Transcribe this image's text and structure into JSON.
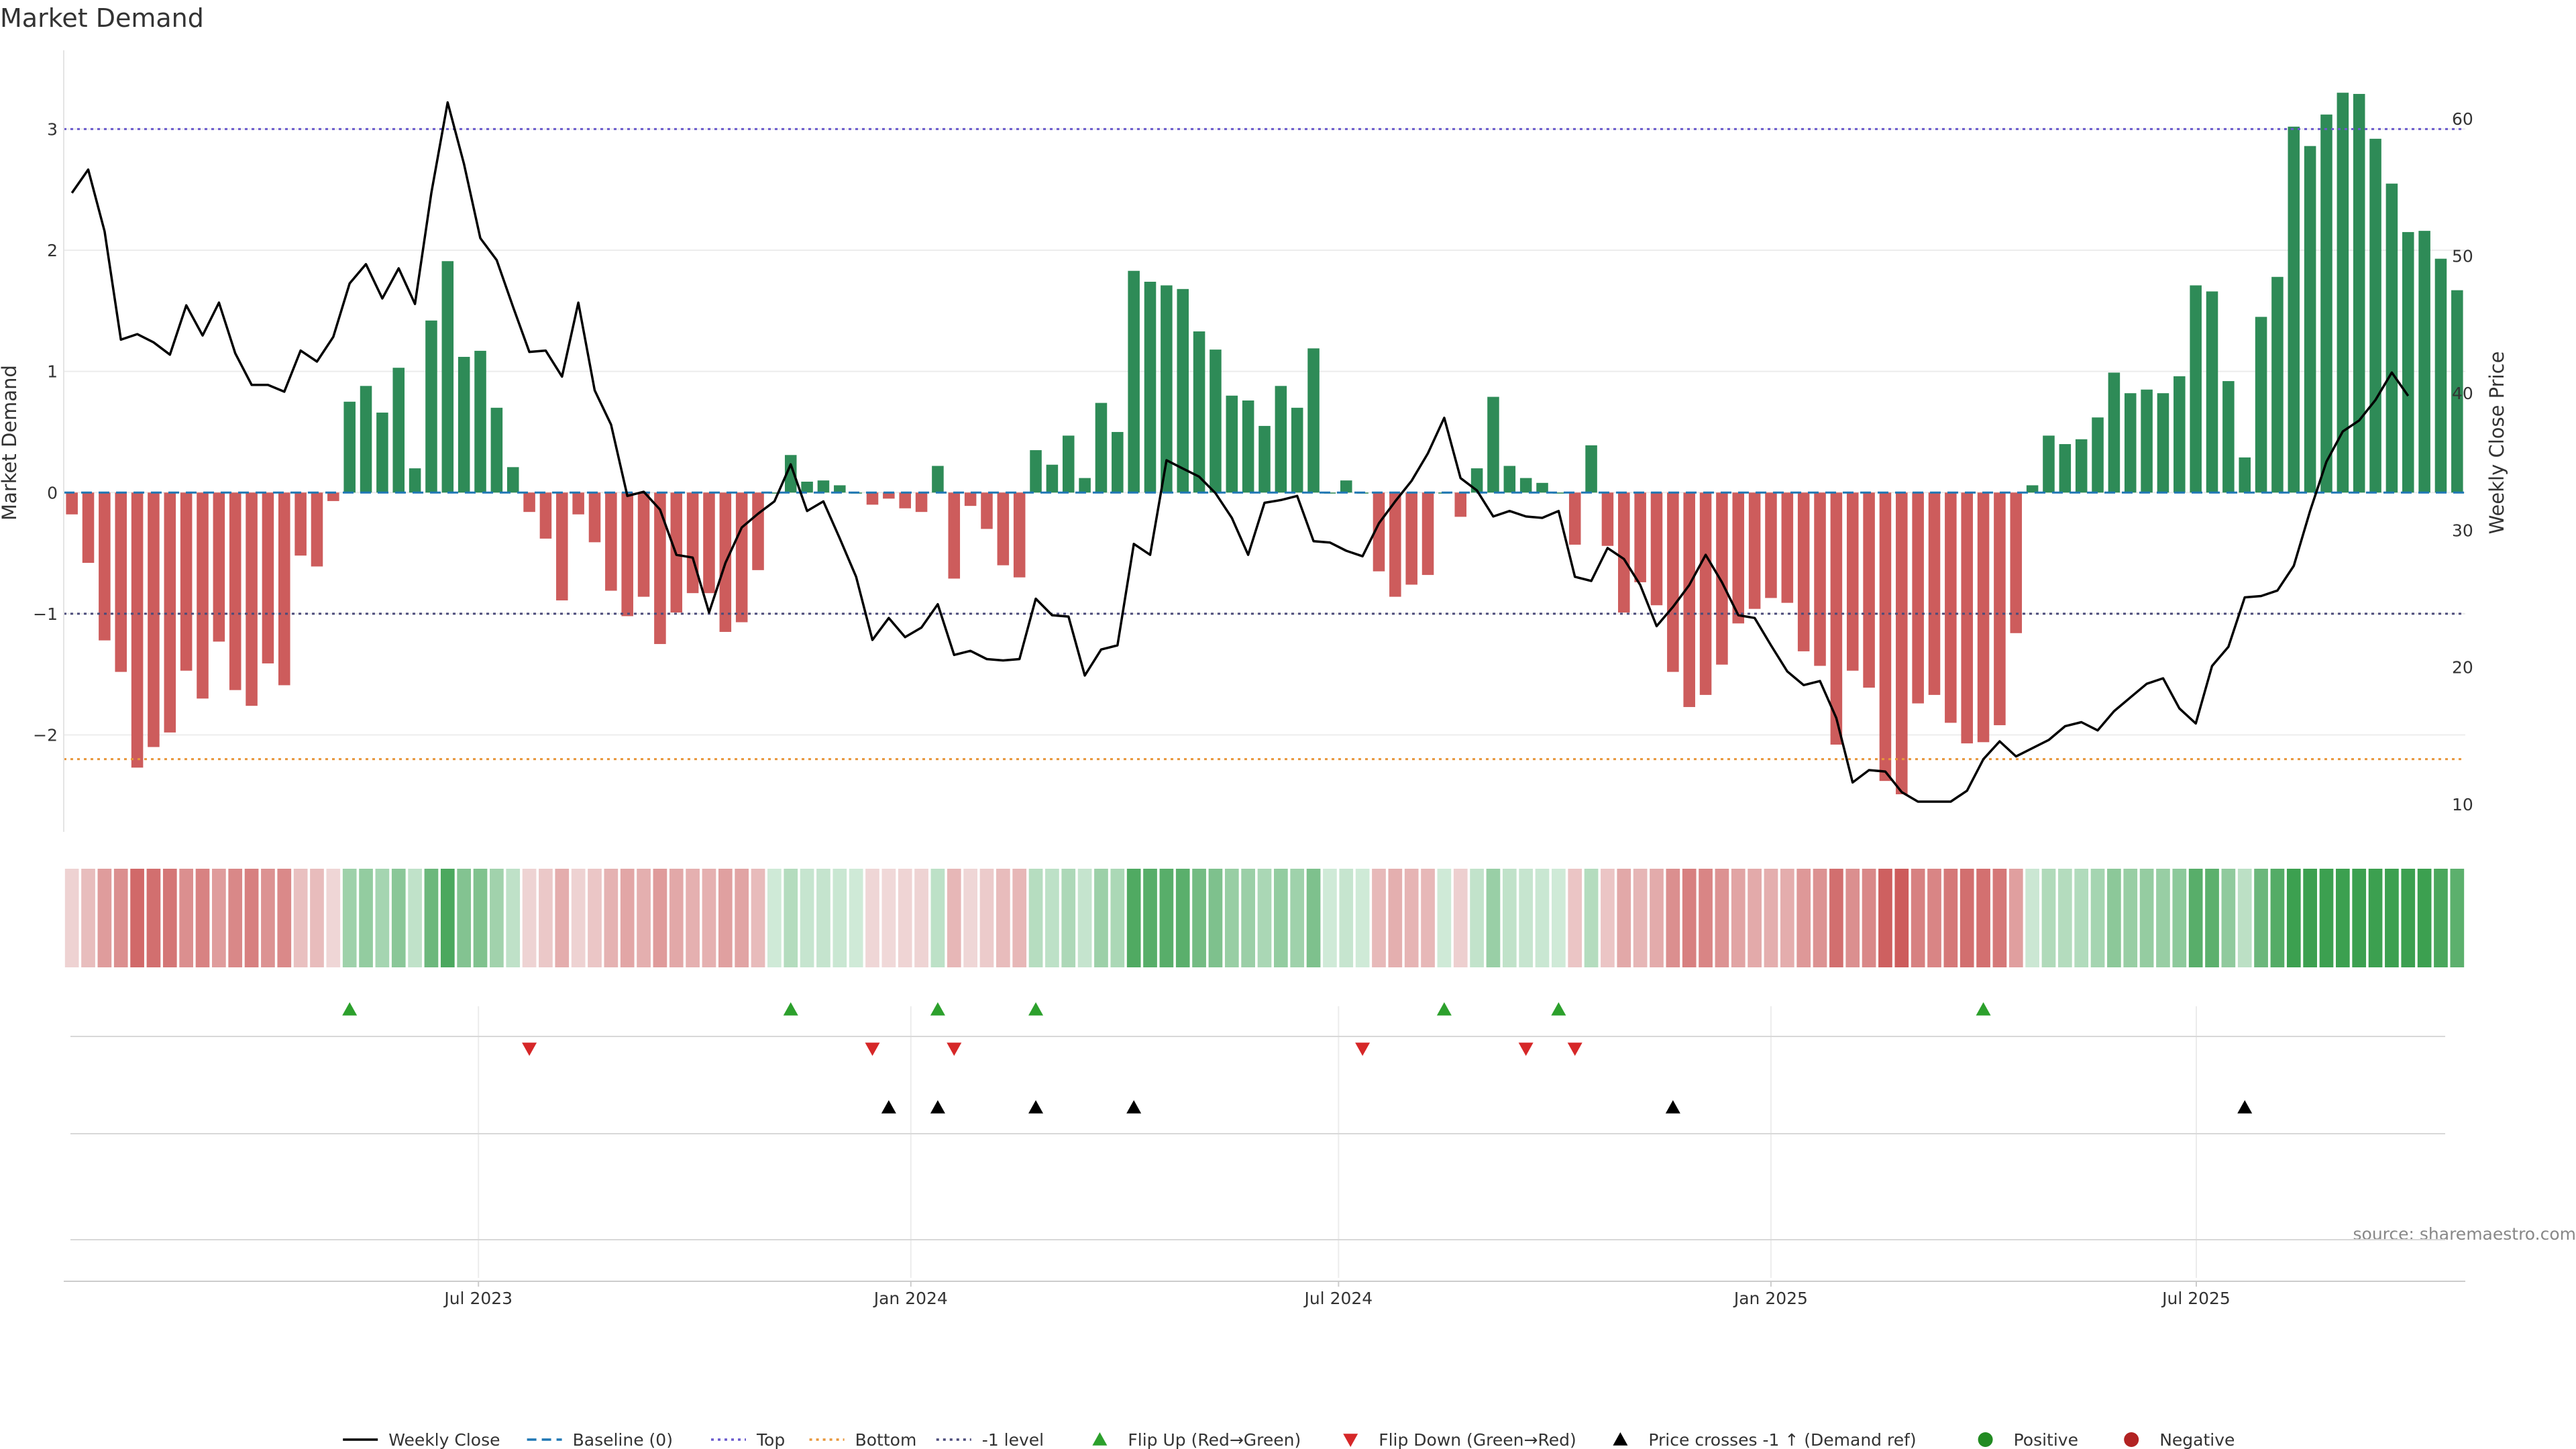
{
  "chart_data": {
    "type": "bar",
    "title": "Market Demand",
    "ylabel": "Market Demand",
    "y2label": "Weekly Close Price",
    "ylim": [
      -2.8,
      3.65
    ],
    "y2lim": [
      8.0,
      65.0
    ],
    "yticks": [
      -2,
      -1,
      0,
      1,
      2,
      3
    ],
    "y2ticks": [
      10,
      20,
      30,
      40,
      50,
      60
    ],
    "start_date": "2023-01-09",
    "end_date": "2025-10-20",
    "x_tick_labels": [
      {
        "date": "2023-07-01",
        "label": "Jul 2023"
      },
      {
        "date": "2024-01-01",
        "label": "Jan 2024"
      },
      {
        "date": "2024-07-01",
        "label": "Jul 2024"
      },
      {
        "date": "2025-01-01",
        "label": "Jan 2025"
      },
      {
        "date": "2025-07-01",
        "label": "Jul 2025"
      }
    ],
    "reference_lines": {
      "top": 3.0,
      "bottom": -2.2,
      "minus_one": -1.0,
      "baseline": 0
    },
    "grid": true,
    "legend_position": "bottom-center",
    "source": "source: sharemaestro.com",
    "colors": {
      "positive": "#2e8b57",
      "negative": "#cd5c5c",
      "close": "#000000",
      "top": "#6a5acd",
      "bottom": "#e8963a",
      "minus_one": "#4b4b7a",
      "baseline": "#1f77b4",
      "flip_up": "#2ca02c",
      "flip_down": "#d62728",
      "price_cross": "#000000"
    },
    "demand": [
      -0.18,
      -0.58,
      -1.22,
      -1.48,
      -2.27,
      -2.1,
      -1.98,
      -1.47,
      -1.7,
      -1.23,
      -1.63,
      -1.76,
      -1.41,
      -1.59,
      -0.52,
      -0.61,
      -0.07,
      0.75,
      0.88,
      0.66,
      1.03,
      0.2,
      1.42,
      1.91,
      1.12,
      1.17,
      0.7,
      0.21,
      -0.16,
      -0.38,
      -0.89,
      -0.18,
      -0.41,
      -0.81,
      -1.02,
      -0.86,
      -1.25,
      -0.99,
      -0.83,
      -0.83,
      -1.15,
      -1.07,
      -0.64,
      0.0,
      0.31,
      0.09,
      0.1,
      0.06,
      0.0,
      -0.1,
      -0.05,
      -0.13,
      -0.16,
      0.22,
      -0.71,
      -0.11,
      -0.3,
      -0.6,
      -0.7,
      0.35,
      0.23,
      0.47,
      0.12,
      0.74,
      0.5,
      1.83,
      1.74,
      1.71,
      1.68,
      1.33,
      1.18,
      0.8,
      0.76,
      0.55,
      0.88,
      0.7,
      1.19,
      0.0,
      0.1,
      0.0,
      -0.65,
      -0.86,
      -0.76,
      -0.68,
      0.0,
      -0.2,
      0.2,
      0.79,
      0.22,
      0.12,
      0.08,
      0.0,
      -0.43,
      0.39,
      -0.44,
      -0.99,
      -0.74,
      -0.93,
      -1.48,
      -1.77,
      -1.67,
      -1.42,
      -1.08,
      -0.96,
      -0.87,
      -0.91,
      -1.31,
      -1.43,
      -2.08,
      -1.47,
      -1.61,
      -2.38,
      -2.49,
      -1.74,
      -1.67,
      -1.9,
      -2.07,
      -2.06,
      -1.92,
      -1.16,
      0.06,
      0.47,
      0.4,
      0.44,
      0.62,
      0.99,
      0.82,
      0.85,
      0.82,
      0.96,
      1.71,
      1.66,
      0.92,
      0.29,
      1.45,
      1.78,
      3.02,
      2.86,
      3.12,
      3.3,
      3.29,
      2.92,
      2.55,
      2.15,
      2.16,
      1.93,
      1.67
    ],
    "close": [
      54.6,
      56.3,
      51.8,
      43.9,
      44.3,
      43.7,
      42.8,
      46.4,
      44.2,
      46.6,
      42.9,
      40.6,
      40.6,
      40.1,
      43.1,
      42.3,
      44.1,
      48.0,
      49.4,
      46.9,
      49.1,
      46.5,
      54.6,
      61.2,
      56.7,
      51.3,
      49.7,
      46.3,
      43.0,
      43.1,
      41.2,
      46.6,
      40.2,
      37.7,
      32.5,
      32.8,
      31.5,
      28.2,
      28.0,
      24.0,
      27.6,
      30.2,
      31.2,
      32.1,
      34.8,
      31.4,
      32.1,
      29.4,
      26.6,
      22.0,
      23.6,
      22.2,
      22.9,
      24.6,
      20.9,
      21.2,
      20.6,
      20.5,
      20.6,
      25.0,
      23.8,
      23.7,
      19.4,
      21.3,
      21.6,
      29.0,
      28.2,
      35.1,
      34.5,
      33.9,
      32.7,
      30.9,
      28.2,
      32.0,
      32.2,
      32.5,
      29.2,
      29.1,
      28.5,
      28.1,
      30.5,
      32.1,
      33.6,
      35.6,
      38.2,
      33.8,
      32.9,
      31.0,
      31.4,
      31.0,
      30.9,
      31.4,
      26.6,
      26.3,
      28.7,
      27.9,
      26.0,
      23.0,
      24.4,
      26.0,
      28.2,
      26.2,
      23.8,
      23.6,
      21.6,
      19.7,
      18.7,
      19.0,
      16.3,
      11.6,
      12.5,
      12.4,
      10.9,
      10.2,
      10.2,
      10.2,
      11.0,
      13.3,
      14.6,
      13.5,
      14.1,
      14.7,
      15.7,
      16.0,
      15.4,
      16.8,
      17.8,
      18.8,
      19.2,
      17.0,
      15.9,
      20.1,
      21.5,
      25.1,
      25.2,
      25.6,
      27.4,
      31.4,
      35.0,
      37.2,
      38.0,
      39.5,
      41.5,
      39.8
    ],
    "heat": [
      0.08,
      0.24,
      0.5,
      0.6,
      0.9,
      0.85,
      0.8,
      0.6,
      0.7,
      0.5,
      0.66,
      0.72,
      0.58,
      0.65,
      0.22,
      0.25,
      0.05,
      0.35,
      0.42,
      0.3,
      0.48,
      0.12,
      0.68,
      0.9,
      0.53,
      0.55,
      0.33,
      0.13,
      0.07,
      0.16,
      0.37,
      0.08,
      0.17,
      0.33,
      0.42,
      0.35,
      0.51,
      0.41,
      0.34,
      0.34,
      0.47,
      0.44,
      0.26,
      0.02,
      0.2,
      0.08,
      0.09,
      0.06,
      0.02,
      0.05,
      0.03,
      0.06,
      0.07,
      0.14,
      0.29,
      0.05,
      0.13,
      0.25,
      0.29,
      0.19,
      0.14,
      0.25,
      0.09,
      0.36,
      0.26,
      0.87,
      0.82,
      0.81,
      0.8,
      0.63,
      0.56,
      0.39,
      0.37,
      0.27,
      0.42,
      0.34,
      0.56,
      0.02,
      0.08,
      0.02,
      0.27,
      0.35,
      0.31,
      0.28,
      0.02,
      0.1,
      0.11,
      0.38,
      0.12,
      0.08,
      0.06,
      0.02,
      0.18,
      0.2,
      0.18,
      0.41,
      0.3,
      0.38,
      0.6,
      0.72,
      0.68,
      0.58,
      0.44,
      0.39,
      0.36,
      0.37,
      0.53,
      0.58,
      0.85,
      0.6,
      0.66,
      0.97,
      1.0,
      0.71,
      0.68,
      0.78,
      0.85,
      0.84,
      0.78,
      0.48,
      0.05,
      0.23,
      0.2,
      0.22,
      0.3,
      0.47,
      0.39,
      0.41,
      0.39,
      0.46,
      0.81,
      0.79,
      0.44,
      0.15,
      0.69,
      0.84,
      1.0,
      1.0,
      1.0,
      1.0,
      1.0,
      1.0,
      1.0,
      1.0,
      1.0,
      0.91,
      0.79
    ],
    "flip_up_weeks": [
      17,
      44,
      53,
      59,
      84,
      91,
      117
    ],
    "flip_down_weeks": [
      28,
      49,
      54,
      79,
      89,
      92
    ],
    "price_cross_weeks": [
      50,
      53,
      59,
      65,
      98,
      133
    ],
    "legend": [
      {
        "label": "Weekly Close",
        "kind": "line-solid",
        "color": "#000000"
      },
      {
        "label": "Baseline (0)",
        "kind": "line-dashed",
        "color": "#1f77b4"
      },
      {
        "label": "Top",
        "kind": "line-dotted",
        "color": "#6a5acd"
      },
      {
        "label": "Bottom",
        "kind": "line-dotted",
        "color": "#e8963a"
      },
      {
        "label": "-1 level",
        "kind": "line-dotted",
        "color": "#4b4b7a"
      },
      {
        "label": "Flip Up (Red→Green)",
        "kind": "tri-up",
        "color": "#2ca02c"
      },
      {
        "label": "Flip Down (Green→Red)",
        "kind": "tri-down",
        "color": "#d62728"
      },
      {
        "label": "Price crosses -1 ↑ (Demand ref)",
        "kind": "tri-up",
        "color": "#000000"
      },
      {
        "label": "Positive",
        "kind": "dot",
        "color": "#228b22"
      },
      {
        "label": "Negative",
        "kind": "dot",
        "color": "#b22222"
      }
    ]
  }
}
